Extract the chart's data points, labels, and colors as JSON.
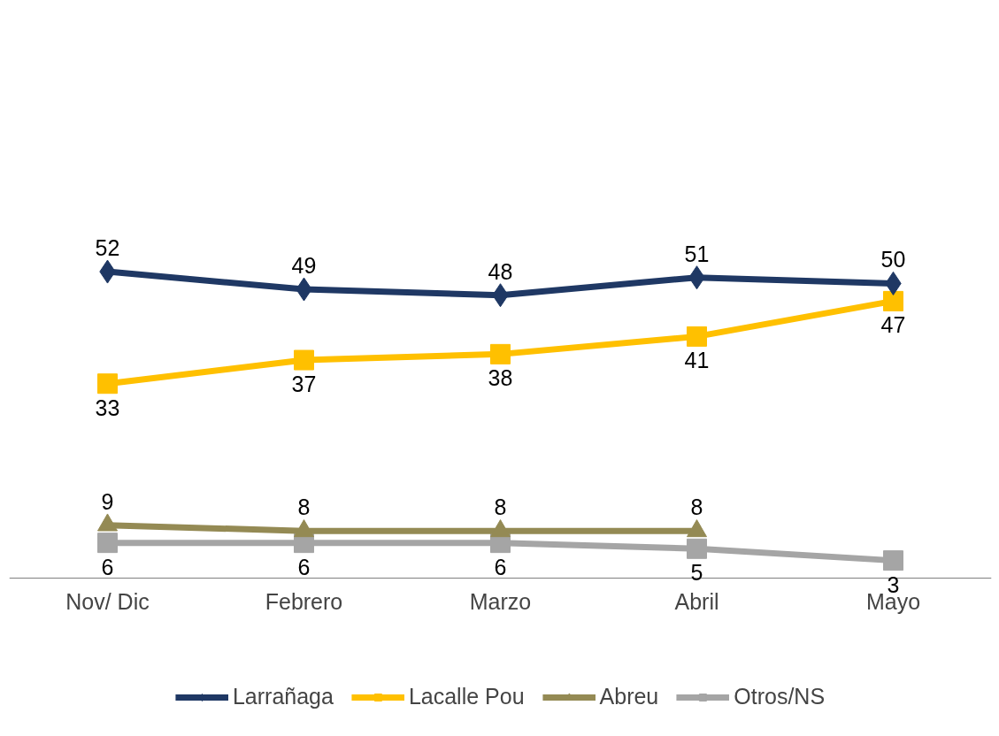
{
  "chart_data": {
    "type": "line",
    "categories": [
      "Nov/ Dic",
      "Febrero",
      "Marzo",
      "Abril",
      "Mayo"
    ],
    "series": [
      {
        "name": "Larrañaga",
        "color": "#1f3864",
        "marker": "diamond",
        "values": [
          52,
          49,
          48,
          51,
          50
        ]
      },
      {
        "name": "Lacalle Pou",
        "color": "#ffc000",
        "marker": "square",
        "values": [
          33,
          37,
          38,
          41,
          47
        ]
      },
      {
        "name": "Abreu",
        "color": "#948a54",
        "marker": "triangle",
        "values": [
          9,
          8,
          8,
          8,
          null
        ]
      },
      {
        "name": "Otros/NS",
        "color": "#a5a5a5",
        "marker": "square",
        "values": [
          6,
          6,
          6,
          5,
          3
        ]
      }
    ],
    "tick_labels": "x",
    "data_labels": true,
    "legend": "bottom",
    "grid": false,
    "line_style": "solid"
  }
}
